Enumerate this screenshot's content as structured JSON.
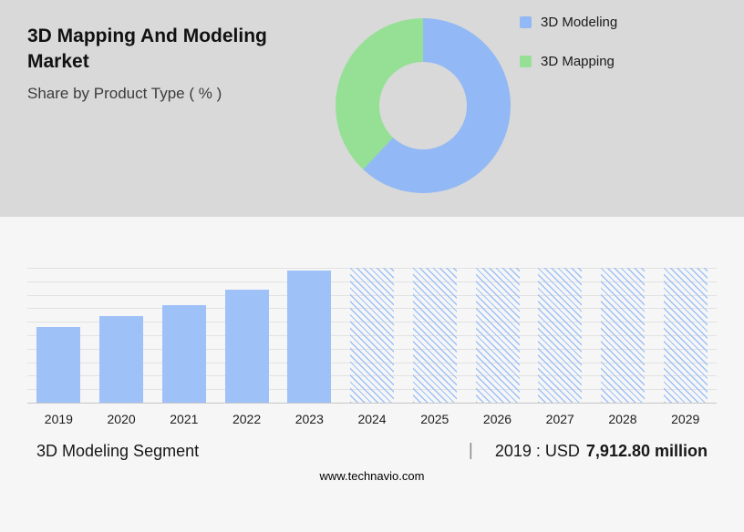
{
  "header": {
    "title": "3D Mapping And Modeling Market",
    "subtitle": "Share by Product Type ( % )"
  },
  "legend": [
    {
      "label": "3D Modeling",
      "color": "#92b9f5"
    },
    {
      "label": "3D Mapping",
      "color": "#96e096"
    }
  ],
  "chart_data": [
    {
      "type": "pie",
      "style": "donut",
      "title": "Share by Product Type ( % )",
      "labels": [
        "3D Modeling",
        "3D Mapping"
      ],
      "values": [
        62,
        38
      ],
      "colors": [
        "#92b9f5",
        "#96e096"
      ],
      "legend_position": "right"
    },
    {
      "type": "bar",
      "categories": [
        "2019",
        "2020",
        "2021",
        "2022",
        "2023",
        "2024",
        "2025",
        "2026",
        "2027",
        "2028",
        "2029"
      ],
      "series": [
        {
          "name": "3D Modeling Segment (relative size, est. from chart)",
          "values": [
            56,
            64,
            72,
            84,
            98,
            100,
            100,
            100,
            100,
            100,
            100
          ]
        }
      ],
      "solid_count": 5,
      "forecast_style": "hatched",
      "bar_color": "#9ec1f7",
      "ylim": [
        0,
        100
      ],
      "grid": true,
      "gridline_count": 10
    }
  ],
  "caption": {
    "segment_label": "3D Modeling Segment",
    "separator": "|",
    "value_prefix": "2019 : USD",
    "value_bold": "7,912.80 million"
  },
  "footer": {
    "website": "www.technavio.com"
  }
}
